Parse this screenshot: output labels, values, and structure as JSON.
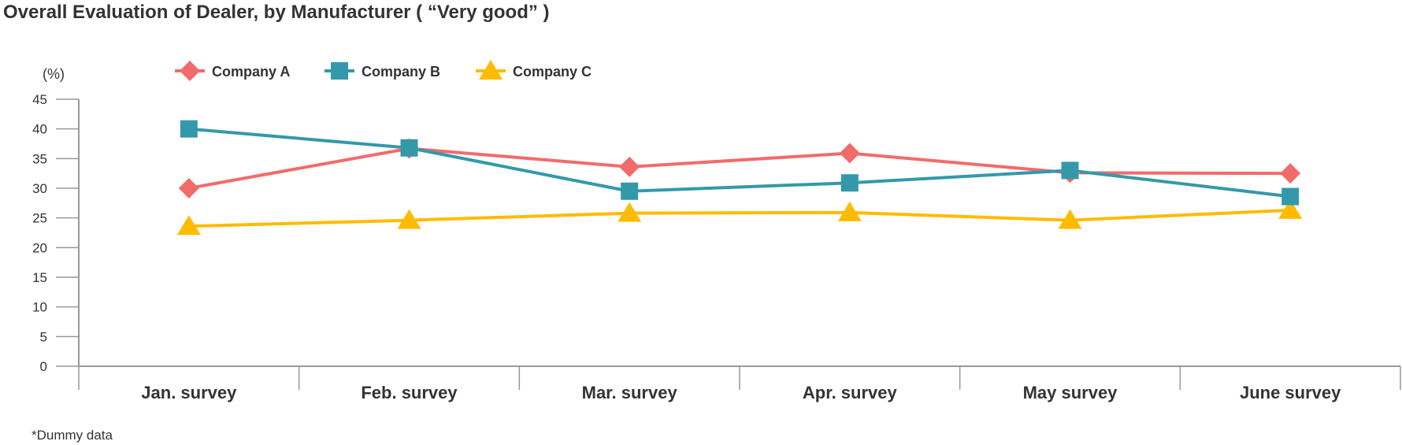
{
  "chart_data": {
    "type": "line",
    "title": "Overall Evaluation of Dealer, by Manufacturer ( “Very good” )",
    "ylabel": "(%)",
    "xlabel": "",
    "categories": [
      "Jan. survey",
      "Feb. survey",
      "Mar. survey",
      "Apr. survey",
      "May survey",
      "June survey"
    ],
    "ylim": [
      0,
      45
    ],
    "yticks": [
      0,
      5,
      10,
      15,
      20,
      25,
      30,
      35,
      40,
      45
    ],
    "grid": false,
    "legend_position": "top-left",
    "series": [
      {
        "name": "Company A",
        "color": "#f26b6b",
        "marker": "diamond",
        "values": [
          30.0,
          36.7,
          33.6,
          35.9,
          32.6,
          32.5
        ]
      },
      {
        "name": "Company B",
        "color": "#3399aa",
        "marker": "square",
        "values": [
          40.0,
          36.8,
          29.5,
          30.9,
          33.0,
          28.6
        ]
      },
      {
        "name": "Company C",
        "color": "#ffbb00",
        "marker": "triangle",
        "values": [
          23.6,
          24.6,
          25.8,
          25.9,
          24.6,
          26.3
        ]
      }
    ]
  },
  "footnote": "*Dummy data"
}
